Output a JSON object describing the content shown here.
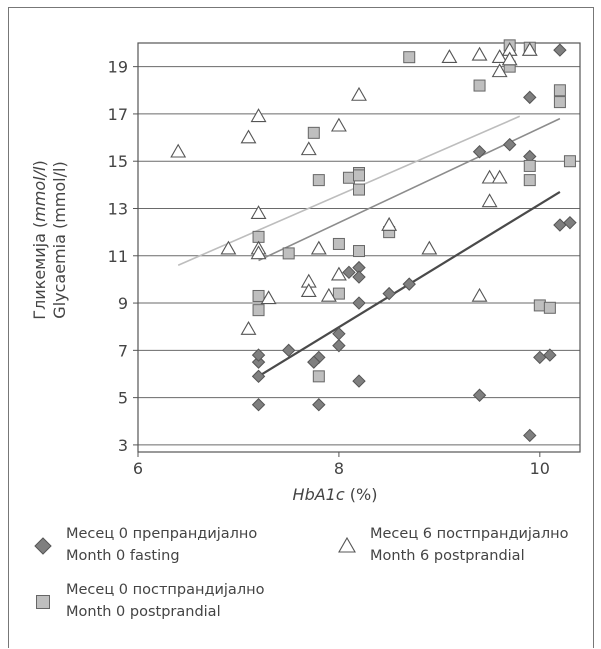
{
  "chart_data": {
    "type": "scatter",
    "xlabel": {
      "italic": "HbA1c",
      "rest": " (%)"
    },
    "ylabel": {
      "line1_plain": "Гликемија (",
      "line1_italic": "mmol/l",
      "line1_end": ")",
      "line2": "Glycaemia (mmol/l)"
    },
    "xlim": [
      6,
      10.4
    ],
    "ylim": [
      2.7,
      20
    ],
    "xticks": [
      6,
      8,
      10
    ],
    "yticks": [
      3,
      5,
      7,
      9,
      11,
      13,
      15,
      17,
      19
    ],
    "grid": "horizontal",
    "series": [
      {
        "name": "Месец 0 препрандијално / Month 0 fasting",
        "marker": "diamond",
        "color": "#7f7f7f",
        "points": [
          [
            7.2,
            4.7
          ],
          [
            7.2,
            5.9
          ],
          [
            7.2,
            6.5
          ],
          [
            7.2,
            6.8
          ],
          [
            7.5,
            7.0
          ],
          [
            7.8,
            4.7
          ],
          [
            7.8,
            6.7
          ],
          [
            7.75,
            6.5
          ],
          [
            8.0,
            7.2
          ],
          [
            8.0,
            7.7
          ],
          [
            8.1,
            10.3
          ],
          [
            8.2,
            10.5
          ],
          [
            8.2,
            10.1
          ],
          [
            8.2,
            9.0
          ],
          [
            8.2,
            5.7
          ],
          [
            8.5,
            9.4
          ],
          [
            8.7,
            9.8
          ],
          [
            9.4,
            15.4
          ],
          [
            9.4,
            5.1
          ],
          [
            9.7,
            15.7
          ],
          [
            9.9,
            17.7
          ],
          [
            9.9,
            15.2
          ],
          [
            9.9,
            3.4
          ],
          [
            10.0,
            6.7
          ],
          [
            10.1,
            6.8
          ],
          [
            10.2,
            12.3
          ],
          [
            10.3,
            12.4
          ],
          [
            10.2,
            19.7
          ]
        ]
      },
      {
        "name": "Месец 0 постпрандијално / Month 0 postprandial",
        "marker": "square",
        "color": "#bfbfbf",
        "points": [
          [
            7.2,
            9.3
          ],
          [
            7.2,
            8.7
          ],
          [
            7.2,
            11.8
          ],
          [
            7.5,
            11.1
          ],
          [
            7.75,
            16.2
          ],
          [
            7.8,
            14.2
          ],
          [
            7.8,
            5.9
          ],
          [
            8.0,
            11.5
          ],
          [
            8.0,
            9.4
          ],
          [
            8.1,
            14.3
          ],
          [
            8.2,
            14.5
          ],
          [
            8.2,
            14.4
          ],
          [
            8.2,
            13.8
          ],
          [
            8.2,
            11.2
          ],
          [
            8.5,
            12.0
          ],
          [
            8.7,
            19.4
          ],
          [
            9.4,
            18.2
          ],
          [
            9.7,
            19.9
          ],
          [
            9.7,
            19.0
          ],
          [
            9.9,
            19.8
          ],
          [
            9.9,
            14.8
          ],
          [
            9.9,
            14.2
          ],
          [
            10.0,
            8.9
          ],
          [
            10.1,
            8.8
          ],
          [
            10.2,
            18.0
          ],
          [
            10.2,
            17.5
          ],
          [
            10.3,
            15.0
          ]
        ]
      },
      {
        "name": "Месец 6 постпрандијално / Month 6 postprandial",
        "marker": "triangle",
        "color": "#ffffff",
        "points": [
          [
            6.4,
            15.4
          ],
          [
            6.9,
            11.3
          ],
          [
            7.1,
            16.0
          ],
          [
            7.1,
            7.9
          ],
          [
            7.2,
            16.9
          ],
          [
            7.2,
            12.8
          ],
          [
            7.2,
            11.3
          ],
          [
            7.2,
            11.1
          ],
          [
            7.3,
            9.2
          ],
          [
            7.7,
            15.5
          ],
          [
            7.7,
            9.9
          ],
          [
            7.7,
            9.5
          ],
          [
            7.8,
            11.3
          ],
          [
            7.9,
            9.3
          ],
          [
            8.0,
            16.5
          ],
          [
            8.0,
            10.2
          ],
          [
            8.2,
            17.8
          ],
          [
            8.5,
            12.3
          ],
          [
            8.9,
            11.3
          ],
          [
            9.1,
            19.4
          ],
          [
            9.4,
            19.5
          ],
          [
            9.4,
            9.3
          ],
          [
            9.5,
            14.3
          ],
          [
            9.5,
            13.3
          ],
          [
            9.6,
            19.4
          ],
          [
            9.6,
            18.8
          ],
          [
            9.6,
            14.3
          ],
          [
            9.7,
            19.7
          ],
          [
            9.7,
            19.3
          ],
          [
            9.9,
            19.7
          ]
        ]
      }
    ],
    "trendlines": [
      {
        "series": "Month 0 fasting",
        "color": "#4a4a4a",
        "width": 2.2,
        "x": [
          7.2,
          10.2
        ],
        "y": [
          5.9,
          13.7
        ]
      },
      {
        "series": "Month 0 postprandial",
        "color": "#8c8c8c",
        "width": 1.6,
        "x": [
          7.2,
          10.2
        ],
        "y": [
          10.8,
          16.8
        ]
      },
      {
        "series": "Month 6 postprandial",
        "color": "#bdbdbd",
        "width": 1.6,
        "x": [
          6.4,
          9.8
        ],
        "y": [
          10.6,
          16.9
        ]
      }
    ]
  },
  "legend": {
    "fasting": {
      "line1": "Месец 0 препрандијално",
      "line2": "Month 0 fasting"
    },
    "month0_post": {
      "line1": "Месец 0 постпрандијално",
      "line2": "Month 0 postprandial"
    },
    "month6_post": {
      "line1": "Месец 6 постпрандијално",
      "line2": "Month 6 postprandial"
    }
  }
}
